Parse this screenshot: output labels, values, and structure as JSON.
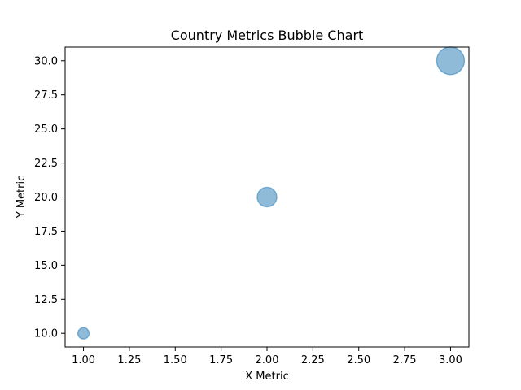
{
  "chart_data": {
    "type": "scatter",
    "title": "Country Metrics Bubble Chart",
    "xlabel": "X Metric",
    "ylabel": "Y Metric",
    "xlim": [
      0.9,
      3.1
    ],
    "ylim": [
      9.0,
      31.0
    ],
    "x_ticks": [
      "1.00",
      "1.25",
      "1.50",
      "1.75",
      "2.00",
      "2.25",
      "2.50",
      "2.75",
      "3.00"
    ],
    "y_ticks": [
      "10.0",
      "12.5",
      "15.0",
      "17.5",
      "20.0",
      "22.5",
      "25.0",
      "27.5",
      "30.0"
    ],
    "grid": false,
    "bubble_color": "#1f77b4",
    "bubble_alpha": 0.5,
    "points": [
      {
        "x": 1.0,
        "y": 10.0,
        "size": 100
      },
      {
        "x": 2.0,
        "y": 20.0,
        "size": 300
      },
      {
        "x": 3.0,
        "y": 30.0,
        "size": 600
      }
    ]
  }
}
